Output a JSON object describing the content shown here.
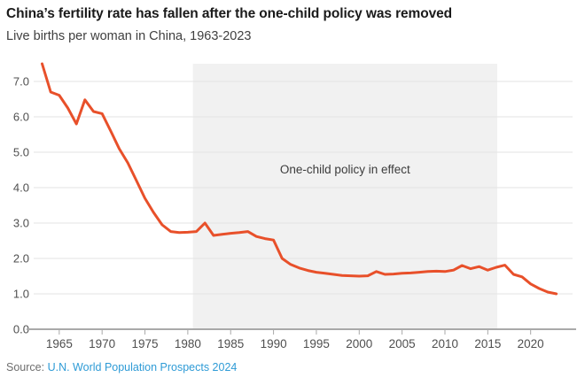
{
  "header": {
    "title": "China’s fertility rate has fallen after the one-child policy was removed",
    "subtitle": "Live births per woman in China, 1963-2023"
  },
  "source": {
    "label": "Source:",
    "link_text": "U.N. World Population Prospects 2024"
  },
  "colors": {
    "line": "#e8502a",
    "band": "#f1f1f1",
    "grid": "#e3e3e3",
    "axis": "#a9a9a9",
    "tick_text": "#4f4f4f",
    "annotation_text": "#3c3c3c",
    "title_text": "#1a1a1a",
    "subtitle_text": "#3f3f3f",
    "link": "#2e9bd6"
  },
  "chart_data": {
    "type": "line",
    "title": "China’s fertility rate has fallen after the one-child policy was removed",
    "subtitle": "Live births per woman in China, 1963-2023",
    "series_name": "Live births per woman",
    "xlabel": "",
    "ylabel": "",
    "xlim": [
      1962,
      2025
    ],
    "ylim": [
      0,
      7.5
    ],
    "grid": "horizontal",
    "x_ticks": [
      1965,
      1970,
      1975,
      1980,
      1985,
      1990,
      1995,
      2000,
      2005,
      2010,
      2015,
      2020
    ],
    "y_ticks": [
      0,
      1,
      2,
      3,
      4,
      5,
      6,
      7
    ],
    "y_tick_labels": [
      "0.0",
      "1.0",
      "2.0",
      "3.0",
      "4.0",
      "5.0",
      "6.0",
      "7.0"
    ],
    "x": [
      1963,
      1964,
      1965,
      1966,
      1967,
      1968,
      1969,
      1970,
      1971,
      1972,
      1973,
      1974,
      1975,
      1976,
      1977,
      1978,
      1979,
      1980,
      1981,
      1982,
      1983,
      1984,
      1985,
      1986,
      1987,
      1988,
      1989,
      1990,
      1991,
      1992,
      1993,
      1994,
      1995,
      1996,
      1997,
      1998,
      1999,
      2000,
      2001,
      2002,
      2003,
      2004,
      2005,
      2006,
      2007,
      2008,
      2009,
      2010,
      2011,
      2012,
      2013,
      2014,
      2015,
      2016,
      2017,
      2018,
      2019,
      2020,
      2021,
      2022,
      2023
    ],
    "values": [
      7.5,
      6.7,
      6.61,
      6.25,
      5.8,
      6.48,
      6.15,
      6.09,
      5.6,
      5.1,
      4.7,
      4.2,
      3.7,
      3.3,
      2.95,
      2.76,
      2.73,
      2.74,
      2.76,
      3.0,
      2.65,
      2.68,
      2.71,
      2.73,
      2.76,
      2.62,
      2.56,
      2.52,
      2.0,
      1.83,
      1.73,
      1.66,
      1.61,
      1.58,
      1.55,
      1.52,
      1.51,
      1.5,
      1.51,
      1.63,
      1.55,
      1.56,
      1.58,
      1.59,
      1.61,
      1.63,
      1.64,
      1.63,
      1.67,
      1.8,
      1.71,
      1.77,
      1.67,
      1.75,
      1.81,
      1.55,
      1.48,
      1.28,
      1.15,
      1.05,
      1.0
    ],
    "annotation": {
      "label": "One-child policy in effect",
      "band_from_year": 1980.6,
      "band_to_year": 2016.1
    }
  }
}
